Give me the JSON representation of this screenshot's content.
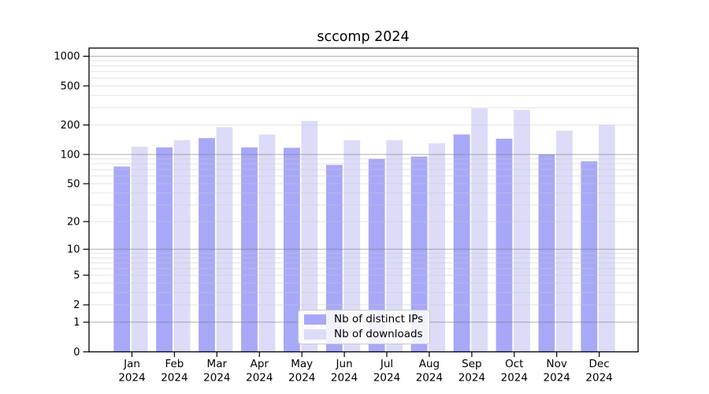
{
  "chart_data": {
    "type": "bar",
    "title": "sccomp 2024",
    "categories": [
      "Jan 2024",
      "Feb 2024",
      "Mar 2024",
      "Apr 2024",
      "May 2024",
      "Jun 2024",
      "Jul 2024",
      "Aug 2024",
      "Sep 2024",
      "Oct 2024",
      "Nov 2024",
      "Dec 2024"
    ],
    "series": [
      {
        "name": "Nb of distinct IPs",
        "color": "#a8a8f8",
        "values": [
          75,
          118,
          147,
          118,
          117,
          78,
          90,
          95,
          160,
          145,
          100,
          85
        ]
      },
      {
        "name": "Nb of downloads",
        "color": "#dcdcf9",
        "values": [
          120,
          140,
          190,
          160,
          220,
          140,
          140,
          130,
          295,
          285,
          175,
          200
        ]
      }
    ],
    "y_axis": {
      "scale": "log10(1+v)",
      "tick_labels": [
        "0",
        "1",
        "2",
        "5",
        "10",
        "20",
        "50",
        "100",
        "200",
        "500",
        "1000"
      ],
      "tick_values": [
        0,
        1,
        2,
        5,
        10,
        20,
        50,
        100,
        200,
        500,
        1000
      ],
      "ylim": [
        0,
        1200
      ],
      "major_gridlines_at": [
        1,
        10,
        100,
        1000
      ],
      "minor_gridlines": "2-9 of each decade"
    },
    "x_axis": {
      "label_year": "2024"
    },
    "legend_position": "inside-bottom-center",
    "grid": "horizontal-only"
  },
  "colors": {
    "bar_dark": "#a8a8f8",
    "bar_light": "#dcdcf9",
    "grid_major": "rgba(120,120,120,0.6)",
    "grid_minor": "rgba(200,200,200,0.5)",
    "axis": "#000000",
    "legend_border": "#c9c9c9"
  }
}
